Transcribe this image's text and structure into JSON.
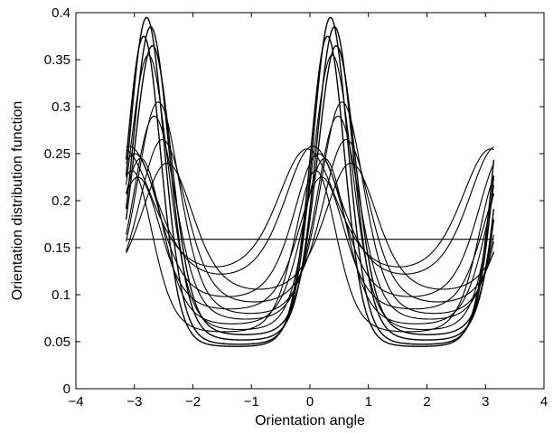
{
  "chart_data": {
    "type": "line",
    "title": "",
    "xlabel": "Orientation angle",
    "ylabel": "Orientation distribution function",
    "xlim": [
      -4,
      4
    ],
    "ylim": [
      0,
      0.4
    ],
    "xticks": [
      "−4",
      "−2",
      "0",
      "2",
      "4",
      "−3",
      "−1",
      "1",
      "3"
    ],
    "xtick_values": [
      -4,
      -2,
      0,
      2,
      4,
      -3,
      -1,
      1,
      3
    ],
    "yticks": [
      "0",
      "0.05",
      "0.1",
      "0.15",
      "0.2",
      "0.25",
      "0.3",
      "0.35",
      "0.4"
    ],
    "ytick_values": [
      0,
      0.05,
      0.1,
      0.15,
      0.2,
      0.25,
      0.3,
      0.35,
      0.4
    ],
    "grid": false,
    "legend": "none",
    "line_color": "#000000",
    "x_domain": [
      -3.1416,
      3.1416
    ],
    "note_model": "Each curve is a bimodal distribution in angle with peaks at ±peak_x (period pi): y = base + amp * exp(kappa*(cos(2*(x - peak_x)) - 1)); base is the minimum, base+amp the peak value",
    "series": [
      {
        "peak_x": 0.35,
        "peak": 0.395,
        "base": 0.046,
        "kappa": 2.8
      },
      {
        "peak_x": 0.42,
        "peak": 0.385,
        "base": 0.05,
        "kappa": 2.6
      },
      {
        "peak_x": 0.3,
        "peak": 0.375,
        "base": 0.044,
        "kappa": 2.9
      },
      {
        "peak_x": 0.45,
        "peak": 0.365,
        "base": 0.055,
        "kappa": 2.4
      },
      {
        "peak_x": 0.38,
        "peak": 0.355,
        "base": 0.06,
        "kappa": 2.3
      },
      {
        "peak_x": 0.55,
        "peak": 0.305,
        "base": 0.075,
        "kappa": 1.9
      },
      {
        "peak_x": 0.48,
        "peak": 0.29,
        "base": 0.07,
        "kappa": 2.0
      },
      {
        "peak_x": 0.62,
        "peak": 0.265,
        "base": 0.085,
        "kappa": 1.6
      },
      {
        "peak_x": 0.05,
        "peak": 0.258,
        "base": 0.105,
        "kappa": 1.1
      },
      {
        "peak_x": -0.05,
        "peak": 0.255,
        "base": 0.11,
        "kappa": 1.0
      },
      {
        "peak_x": 0.7,
        "peak": 0.24,
        "base": 0.095,
        "kappa": 1.3
      },
      {
        "peak_x": 0.15,
        "peak": 0.25,
        "base": 0.09,
        "kappa": 1.5
      },
      {
        "peak_x": 0.25,
        "peak": 0.245,
        "base": 0.065,
        "kappa": 1.9
      },
      {
        "peak_x": 0.1,
        "peak": 0.232,
        "base": 0.058,
        "kappa": 2.1
      },
      {
        "peak_x": 0.2,
        "peak": 0.225,
        "base": 0.08,
        "kappa": 1.7
      },
      {
        "peak_x": 0.0,
        "peak": 0.159,
        "base": 0.159,
        "kappa": 0.0
      }
    ]
  }
}
